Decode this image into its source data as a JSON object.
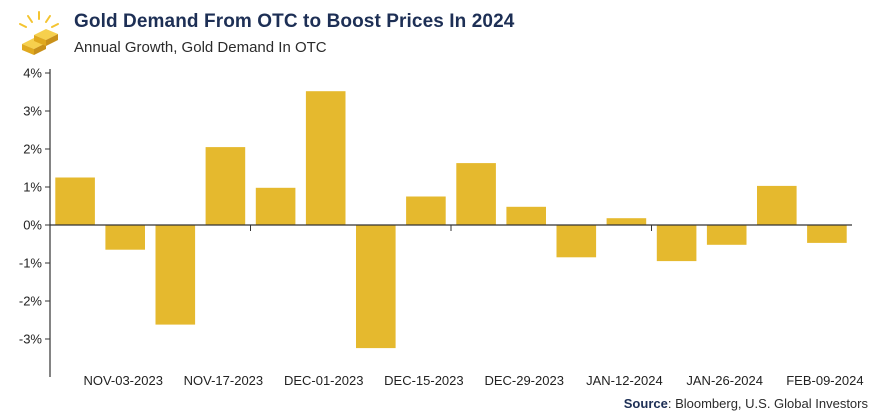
{
  "header": {
    "title": "Gold Demand From OTC to Boost Prices In 2024",
    "subtitle": "Annual Growth, Gold Demand In OTC",
    "logo_icon": "gold-bars-icon"
  },
  "source": {
    "label": "Source",
    "text": ": Bloomberg, U.S. Global Investors"
  },
  "colors": {
    "bar": "#e5b92e",
    "axis": "#333333",
    "title": "#1d2f55"
  },
  "chart_data": {
    "type": "bar",
    "title": "Gold Demand From OTC to Boost Prices In 2024",
    "subtitle": "Annual Growth, Gold Demand In OTC",
    "xlabel": "",
    "ylabel": "",
    "ylim": [
      -4,
      4
    ],
    "y_ticks": [
      "4%",
      "3%",
      "2%",
      "1%",
      "0%",
      "-1%",
      "-2%",
      "-3%"
    ],
    "y_tick_values": [
      4,
      3,
      2,
      1,
      0,
      -1,
      -2,
      -3
    ],
    "x_tick_labels": [
      "NOV-03-2023",
      "NOV-17-2023",
      "DEC-01-2023",
      "DEC-15-2023",
      "DEC-29-2023",
      "JAN-12-2024",
      "JAN-26-2024",
      "FEB-09-2024"
    ],
    "values": [
      1.25,
      -0.65,
      -2.62,
      2.05,
      0.98,
      3.52,
      -3.24,
      0.75,
      1.63,
      0.48,
      -0.85,
      0.18,
      -0.95,
      -0.52,
      1.03,
      -0.47
    ],
    "grid": false,
    "legend": "none"
  }
}
